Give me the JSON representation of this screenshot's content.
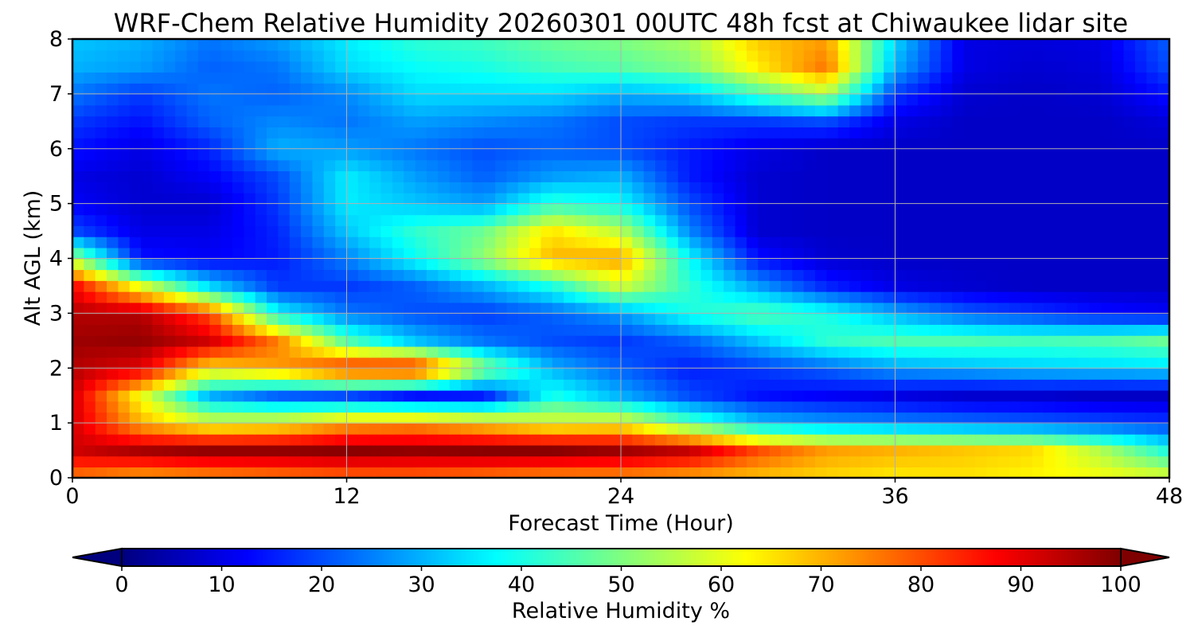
{
  "chart_data": {
    "type": "heatmap",
    "title": "WRF-Chem Relative Humidity 20260301 00UTC 48h fcst at Chiwaukee lidar site",
    "xlabel": "Forecast Time (Hour)",
    "ylabel": "Alt AGL (km)",
    "xlim": [
      0,
      48
    ],
    "ylim": [
      0,
      8
    ],
    "x_ticks": [
      "0",
      "12",
      "24",
      "36",
      "48"
    ],
    "y_ticks": [
      "0",
      "1",
      "2",
      "3",
      "4",
      "5",
      "6",
      "7",
      "8"
    ],
    "grid": true,
    "x": [
      0,
      3,
      6,
      9,
      12,
      15,
      18,
      21,
      24,
      27,
      30,
      33,
      36,
      39,
      42,
      45,
      48
    ],
    "y": [
      0.0,
      0.5,
      1.0,
      1.5,
      2.0,
      2.5,
      3.0,
      3.5,
      4.0,
      4.5,
      5.0,
      5.5,
      6.0,
      6.5,
      7.0,
      7.5,
      8.0
    ],
    "z": [
      [
        75,
        70,
        72,
        74,
        76,
        76,
        74,
        72,
        72,
        70,
        68,
        66,
        64,
        65,
        63,
        62,
        60
      ],
      [
        92,
        96,
        98,
        98,
        99,
        98,
        99,
        99,
        97,
        93,
        80,
        72,
        70,
        68,
        66,
        55,
        40
      ],
      [
        92,
        70,
        60,
        62,
        70,
        72,
        66,
        60,
        62,
        46,
        32,
        28,
        26,
        24,
        22,
        20,
        18
      ],
      [
        92,
        62,
        30,
        22,
        20,
        14,
        15,
        40,
        30,
        20,
        14,
        12,
        10,
        8,
        8,
        7,
        7
      ],
      [
        95,
        90,
        65,
        72,
        85,
        88,
        52,
        30,
        22,
        15,
        18,
        22,
        28,
        30,
        32,
        33,
        34
      ],
      [
        97,
        98,
        92,
        75,
        46,
        32,
        24,
        20,
        18,
        22,
        32,
        42,
        45,
        45,
        44,
        45,
        48
      ],
      [
        95,
        95,
        80,
        38,
        24,
        20,
        18,
        22,
        28,
        40,
        46,
        40,
        30,
        22,
        18,
        14,
        12
      ],
      [
        88,
        60,
        34,
        18,
        18,
        22,
        30,
        40,
        58,
        42,
        28,
        16,
        10,
        8,
        7,
        7,
        7
      ],
      [
        55,
        14,
        12,
        15,
        25,
        38,
        52,
        70,
        72,
        38,
        14,
        8,
        7,
        7,
        7,
        7,
        7
      ],
      [
        20,
        10,
        10,
        16,
        32,
        42,
        48,
        65,
        56,
        26,
        8,
        7,
        7,
        7,
        7,
        7,
        7
      ],
      [
        12,
        8,
        8,
        18,
        36,
        32,
        28,
        42,
        38,
        20,
        8,
        7,
        7,
        7,
        7,
        7,
        7
      ],
      [
        10,
        8,
        12,
        20,
        36,
        28,
        22,
        28,
        30,
        15,
        8,
        7,
        7,
        7,
        7,
        7,
        7
      ],
      [
        14,
        10,
        16,
        30,
        28,
        24,
        20,
        22,
        20,
        15,
        10,
        7,
        7,
        7,
        7,
        7,
        7
      ],
      [
        18,
        14,
        22,
        26,
        24,
        28,
        26,
        24,
        20,
        18,
        18,
        20,
        10,
        7,
        7,
        7,
        9
      ],
      [
        24,
        18,
        24,
        22,
        26,
        34,
        34,
        34,
        30,
        32,
        44,
        55,
        18,
        8,
        7,
        8,
        14
      ],
      [
        30,
        28,
        22,
        24,
        34,
        38,
        40,
        44,
        46,
        50,
        64,
        76,
        30,
        10,
        8,
        9,
        20
      ],
      [
        32,
        30,
        24,
        28,
        36,
        42,
        44,
        48,
        50,
        54,
        68,
        72,
        34,
        10,
        9,
        10,
        22
      ]
    ],
    "colorbar": {
      "label": "Relative Humidity %",
      "min": 0,
      "max": 100,
      "ticks": [
        "0",
        "10",
        "20",
        "30",
        "40",
        "50",
        "60",
        "70",
        "80",
        "90",
        "100"
      ],
      "extend": "both",
      "colormap": "jet",
      "colors": [
        "#00007f",
        "#0000ff",
        "#007fff",
        "#00ffff",
        "#7fff7f",
        "#ffff00",
        "#ff7f00",
        "#ff0000",
        "#7f0000"
      ]
    }
  }
}
